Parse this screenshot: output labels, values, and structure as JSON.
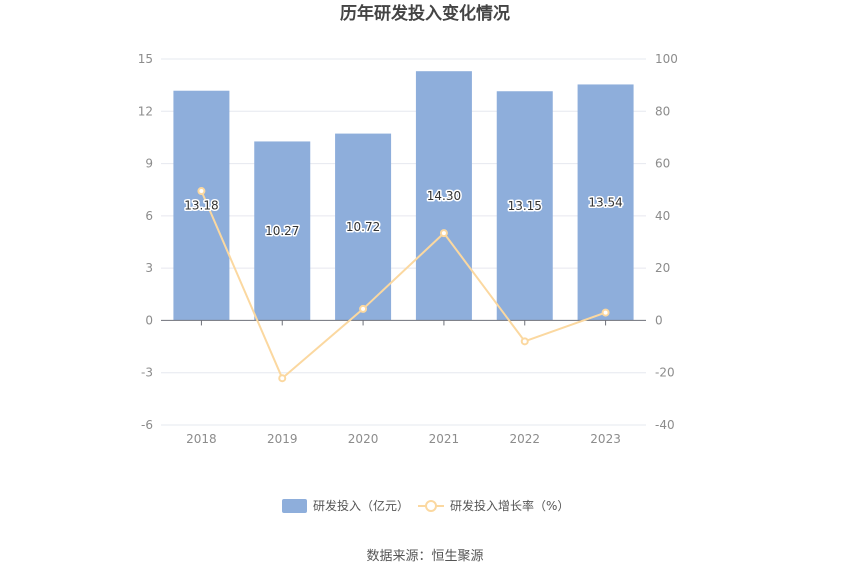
{
  "chart_data": {
    "type": "bar",
    "title": "历年研发投入变化情况",
    "categories": [
      "2018",
      "2019",
      "2020",
      "2021",
      "2022",
      "2023"
    ],
    "series": [
      {
        "name": "研发投入（亿元）",
        "type": "bar",
        "axis": "left",
        "values": [
          13.18,
          10.27,
          10.72,
          14.3,
          13.15,
          13.54
        ],
        "color": "#8eaedb"
      },
      {
        "name": "研发投入增长率（%）",
        "type": "line",
        "axis": "right",
        "values": [
          49.5,
          -22.1,
          4.4,
          33.4,
          -8.0,
          3.0
        ],
        "color": "#fbd8a0"
      }
    ],
    "y_left": {
      "min": -6,
      "max": 15,
      "ticks": [
        "-6",
        "-3",
        "0",
        "3",
        "6",
        "9",
        "12",
        "15"
      ]
    },
    "y_right": {
      "min": -40,
      "max": 100,
      "ticks": [
        "-40",
        "-20",
        "0",
        "20",
        "40",
        "60",
        "80",
        "100"
      ]
    },
    "data_labels": [
      "13.18",
      "10.27",
      "10.72",
      "14.30",
      "13.15",
      "13.54"
    ],
    "grid": true,
    "legend_position": "bottom"
  },
  "footer": {
    "source": "数据来源：恒生聚源"
  }
}
